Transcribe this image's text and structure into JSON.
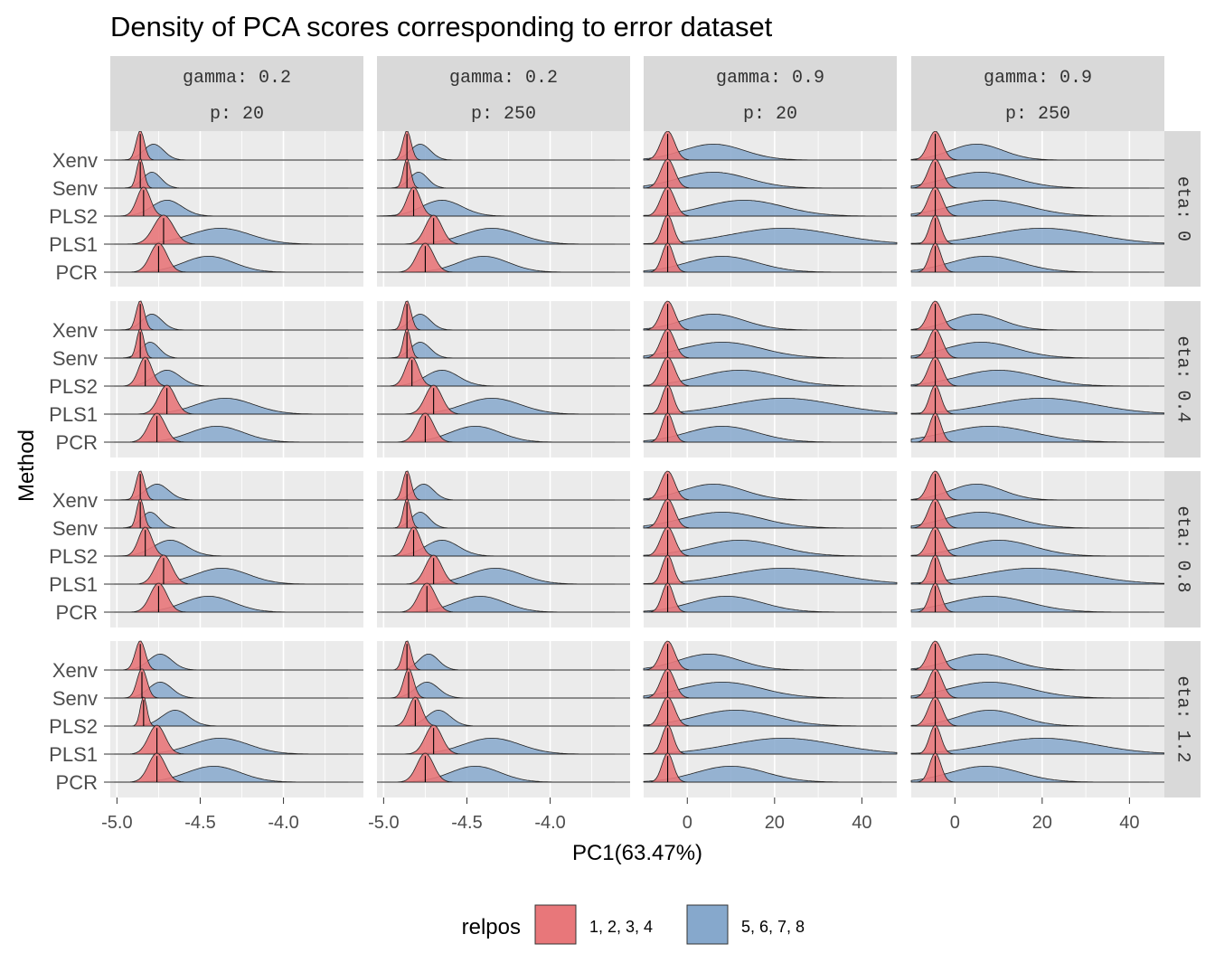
{
  "chart_data": {
    "type": "ridgeline",
    "title": "Density of PCA scores corresponding to error dataset",
    "xlabel": "PC1(63.47%)",
    "ylabel": "Method",
    "methods": [
      "Xenv",
      "Senv",
      "PLS2",
      "PLS1",
      "PCR"
    ],
    "column_facets": [
      {
        "gamma": "gamma: 0.2",
        "p": "p: 20"
      },
      {
        "gamma": "gamma: 0.2",
        "p": "p: 250"
      },
      {
        "gamma": "gamma: 0.9",
        "p": "p: 20"
      },
      {
        "gamma": "gamma: 0.9",
        "p": "p: 250"
      }
    ],
    "row_facets": [
      "eta: 0",
      "eta: 0.4",
      "eta: 0.8",
      "eta: 1.2"
    ],
    "x_axes": [
      {
        "ticks": [
          -5.0,
          -4.5,
          -4.0
        ],
        "tick_labels": [
          "-5.0",
          "-4.5",
          "-4.0"
        ],
        "xlim": [
          -5.04,
          -3.52
        ]
      },
      {
        "ticks": [
          -5.0,
          -4.5,
          -4.0
        ],
        "tick_labels": [
          "-5.0",
          "-4.5",
          "-4.0"
        ],
        "xlim": [
          -5.04,
          -3.52
        ]
      },
      {
        "ticks": [
          0,
          20,
          40
        ],
        "tick_labels": [
          "0",
          "20",
          "40"
        ],
        "xlim": [
          -10,
          48
        ]
      },
      {
        "ticks": [
          0,
          20,
          40
        ],
        "tick_labels": [
          "0",
          "20",
          "40"
        ],
        "xlim": [
          -10,
          48
        ]
      }
    ],
    "legend": {
      "title": "relpos",
      "position": "bottom",
      "entries": [
        {
          "label": "1, 2, 3, 4",
          "color": "#e8777a"
        },
        {
          "label": "5, 6, 7, 8",
          "color": "#86a8cc"
        }
      ]
    },
    "series_styles": {
      "red": {
        "fill": "#e8777a",
        "opacity": 0.9
      },
      "blue": {
        "fill": "#86a8cc",
        "opacity": 0.85
      }
    },
    "panel_background": "#ebebeb",
    "strip_background": "#d9d9d9",
    "panels": [
      [
        {
          "Xenv": [
            [
              -4.86,
              0.025
            ],
            [
              -4.78,
              0.06
            ]
          ],
          "Senv": [
            [
              -4.86,
              0.022
            ],
            [
              -4.79,
              0.055
            ]
          ],
          "PLS2": [
            [
              -4.84,
              0.04
            ],
            [
              -4.7,
              0.09
            ]
          ],
          "PLS1": [
            [
              -4.72,
              0.06
            ],
            [
              -4.38,
              0.18
            ]
          ],
          "PCR": [
            [
              -4.75,
              0.05
            ],
            [
              -4.45,
              0.15
            ]
          ]
        },
        {
          "Xenv": [
            [
              -4.86,
              0.025
            ],
            [
              -4.78,
              0.06
            ]
          ],
          "Senv": [
            [
              -4.86,
              0.022
            ],
            [
              -4.79,
              0.055
            ]
          ],
          "PLS2": [
            [
              -4.82,
              0.04
            ],
            [
              -4.65,
              0.12
            ]
          ],
          "PLS1": [
            [
              -4.7,
              0.05
            ],
            [
              -4.35,
              0.17
            ]
          ],
          "PCR": [
            [
              -4.75,
              0.05
            ],
            [
              -4.4,
              0.15
            ]
          ]
        },
        {
          "Xenv": [
            [
              -4.5,
              1.6
            ],
            [
              6,
              7
            ]
          ],
          "Senv": [
            [
              -4.5,
              1.6
            ],
            [
              6,
              8
            ]
          ],
          "PLS2": [
            [
              -4.5,
              1.6
            ],
            [
              13,
              9
            ]
          ],
          "PLS1": [
            [
              -4.5,
              1.3
            ],
            [
              22,
              12
            ]
          ],
          "PCR": [
            [
              -4.5,
              1.3
            ],
            [
              8,
              8
            ]
          ]
        },
        {
          "Xenv": [
            [
              -4.5,
              1.6
            ],
            [
              5,
              6
            ]
          ],
          "Senv": [
            [
              -4.5,
              1.6
            ],
            [
              6,
              8
            ]
          ],
          "PLS2": [
            [
              -4.5,
              1.6
            ],
            [
              8,
              9
            ]
          ],
          "PLS1": [
            [
              -4.5,
              1.3
            ],
            [
              20,
              12
            ]
          ],
          "PCR": [
            [
              -4.5,
              1.3
            ],
            [
              7,
              8
            ]
          ]
        }
      ],
      [
        {
          "Xenv": [
            [
              -4.86,
              0.025
            ],
            [
              -4.79,
              0.06
            ]
          ],
          "Senv": [
            [
              -4.86,
              0.022
            ],
            [
              -4.8,
              0.055
            ]
          ],
          "PLS2": [
            [
              -4.83,
              0.04
            ],
            [
              -4.7,
              0.08
            ]
          ],
          "PLS1": [
            [
              -4.7,
              0.05
            ],
            [
              -4.35,
              0.17
            ]
          ],
          "PCR": [
            [
              -4.76,
              0.05
            ],
            [
              -4.4,
              0.16
            ]
          ]
        },
        {
          "Xenv": [
            [
              -4.86,
              0.025
            ],
            [
              -4.78,
              0.06
            ]
          ],
          "Senv": [
            [
              -4.86,
              0.022
            ],
            [
              -4.78,
              0.06
            ]
          ],
          "PLS2": [
            [
              -4.83,
              0.04
            ],
            [
              -4.65,
              0.1
            ]
          ],
          "PLS1": [
            [
              -4.7,
              0.05
            ],
            [
              -4.35,
              0.17
            ]
          ],
          "PCR": [
            [
              -4.75,
              0.05
            ],
            [
              -4.45,
              0.15
            ]
          ]
        },
        {
          "Xenv": [
            [
              -4.5,
              1.6
            ],
            [
              6,
              7
            ]
          ],
          "Senv": [
            [
              -4.5,
              1.6
            ],
            [
              8,
              9
            ]
          ],
          "PLS2": [
            [
              -4.5,
              1.6
            ],
            [
              12,
              9
            ]
          ],
          "PLS1": [
            [
              -4.5,
              1.3
            ],
            [
              22,
              12
            ]
          ],
          "PCR": [
            [
              -4.5,
              1.3
            ],
            [
              8,
              8
            ]
          ]
        },
        {
          "Xenv": [
            [
              -4.5,
              1.6
            ],
            [
              5,
              6
            ]
          ],
          "Senv": [
            [
              -4.5,
              1.6
            ],
            [
              6,
              8
            ]
          ],
          "PLS2": [
            [
              -4.5,
              1.6
            ],
            [
              10,
              9
            ]
          ],
          "PLS1": [
            [
              -4.5,
              1.3
            ],
            [
              20,
              12
            ]
          ],
          "PCR": [
            [
              -4.5,
              1.3
            ],
            [
              8,
              10
            ]
          ]
        }
      ],
      [
        {
          "Xenv": [
            [
              -4.86,
              0.025
            ],
            [
              -4.76,
              0.07
            ]
          ],
          "Senv": [
            [
              -4.86,
              0.022
            ],
            [
              -4.8,
              0.055
            ]
          ],
          "PLS2": [
            [
              -4.83,
              0.04
            ],
            [
              -4.68,
              0.1
            ]
          ],
          "PLS1": [
            [
              -4.72,
              0.05
            ],
            [
              -4.37,
              0.16
            ]
          ],
          "PCR": [
            [
              -4.75,
              0.05
            ],
            [
              -4.45,
              0.15
            ]
          ]
        },
        {
          "Xenv": [
            [
              -4.86,
              0.025
            ],
            [
              -4.76,
              0.06
            ]
          ],
          "Senv": [
            [
              -4.86,
              0.022
            ],
            [
              -4.78,
              0.055
            ]
          ],
          "PLS2": [
            [
              -4.82,
              0.04
            ],
            [
              -4.65,
              0.1
            ]
          ],
          "PLS1": [
            [
              -4.7,
              0.05
            ],
            [
              -4.33,
              0.16
            ]
          ],
          "PCR": [
            [
              -4.74,
              0.05
            ],
            [
              -4.42,
              0.15
            ]
          ]
        },
        {
          "Xenv": [
            [
              -4.5,
              1.6
            ],
            [
              6,
              7
            ]
          ],
          "Senv": [
            [
              -4.5,
              1.6
            ],
            [
              8,
              9
            ]
          ],
          "PLS2": [
            [
              -4.5,
              1.6
            ],
            [
              12,
              9
            ]
          ],
          "PLS1": [
            [
              -4.5,
              1.3
            ],
            [
              22,
              12
            ]
          ],
          "PCR": [
            [
              -4.5,
              1.3
            ],
            [
              9,
              8
            ]
          ]
        },
        {
          "Xenv": [
            [
              -4.5,
              1.6
            ],
            [
              5,
              6
            ]
          ],
          "Senv": [
            [
              -4.5,
              1.6
            ],
            [
              6,
              8
            ]
          ],
          "PLS2": [
            [
              -4.5,
              1.6
            ],
            [
              10,
              8
            ]
          ],
          "PLS1": [
            [
              -4.5,
              1.3
            ],
            [
              18,
              12
            ]
          ],
          "PCR": [
            [
              -4.5,
              1.3
            ],
            [
              8,
              9
            ]
          ]
        }
      ],
      [
        {
          "Xenv": [
            [
              -4.86,
              0.03
            ],
            [
              -4.74,
              0.07
            ]
          ],
          "Senv": [
            [
              -4.85,
              0.03
            ],
            [
              -4.74,
              0.07
            ]
          ],
          "PLS2": [
            [
              -4.84,
              0.02
            ],
            [
              -4.65,
              0.08
            ]
          ],
          "PLS1": [
            [
              -4.76,
              0.05
            ],
            [
              -4.38,
              0.17
            ]
          ],
          "PCR": [
            [
              -4.76,
              0.05
            ],
            [
              -4.42,
              0.16
            ]
          ]
        },
        {
          "Xenv": [
            [
              -4.86,
              0.025
            ],
            [
              -4.73,
              0.06
            ]
          ],
          "Senv": [
            [
              -4.85,
              0.03
            ],
            [
              -4.74,
              0.07
            ]
          ],
          "PLS2": [
            [
              -4.81,
              0.04
            ],
            [
              -4.67,
              0.07
            ]
          ],
          "PLS1": [
            [
              -4.7,
              0.05
            ],
            [
              -4.35,
              0.17
            ]
          ],
          "PCR": [
            [
              -4.75,
              0.05
            ],
            [
              -4.45,
              0.15
            ]
          ]
        },
        {
          "Xenv": [
            [
              -4.5,
              1.6
            ],
            [
              5,
              7
            ]
          ],
          "Senv": [
            [
              -4.5,
              1.6
            ],
            [
              8,
              9
            ]
          ],
          "PLS2": [
            [
              -4.5,
              1.6
            ],
            [
              11,
              9
            ]
          ],
          "PLS1": [
            [
              -4.5,
              1.3
            ],
            [
              22,
              12
            ]
          ],
          "PCR": [
            [
              -4.5,
              1.3
            ],
            [
              10,
              8
            ]
          ]
        },
        {
          "Xenv": [
            [
              -4.5,
              1.6
            ],
            [
              6,
              7
            ]
          ],
          "Senv": [
            [
              -4.5,
              1.6
            ],
            [
              8,
              9
            ]
          ],
          "PLS2": [
            [
              -4.5,
              1.6
            ],
            [
              8,
              7
            ]
          ],
          "PLS1": [
            [
              -4.5,
              1.3
            ],
            [
              20,
              12
            ]
          ],
          "PCR": [
            [
              -4.5,
              1.3
            ],
            [
              7,
              8
            ]
          ]
        }
      ]
    ]
  }
}
